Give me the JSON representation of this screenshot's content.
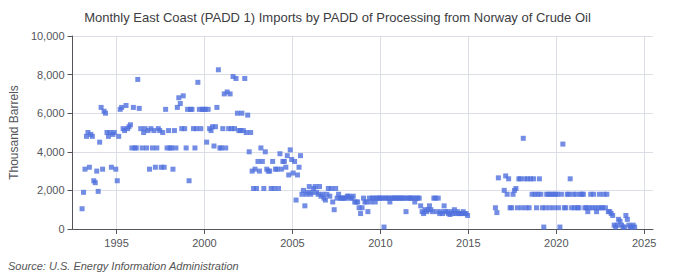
{
  "chart_data": {
    "type": "scatter",
    "title": "Monthly East Coast (PADD 1) Imports by PADD of Processing from Norway of Crude Oil",
    "ylabel": "Thousand Barrels",
    "annotations": [
      "Source: U.S. Energy Information Administration"
    ],
    "marker": "square",
    "grid": true,
    "xlim": [
      1992.5,
      2025.5
    ],
    "xticks": [
      1995,
      2000,
      2005,
      2010,
      2015,
      2020,
      2025
    ],
    "ylim": [
      0,
      10000
    ],
    "yticks": [
      0,
      {
        "value": 2000,
        "label": "2,000"
      },
      {
        "value": 4000,
        "label": "4,000"
      },
      {
        "value": 6000,
        "label": "6,000"
      },
      {
        "value": 8000,
        "label": "8,000"
      },
      {
        "value": 10000,
        "label": "10,000"
      }
    ],
    "x": [
      1993.0416666666667,
      1993.125,
      1993.2083333333333,
      1993.2916666666667,
      1993.375,
      1993.4583333333333,
      1993.5416666666667,
      1993.625,
      1993.7083333333333,
      1993.7916666666667,
      1993.875,
      1993.9583333333333,
      1994.0416666666667,
      1994.125,
      1994.2083333333333,
      1994.2916666666667,
      1994.375,
      1994.4583333333333,
      1994.5416666666667,
      1994.625,
      1994.7083333333333,
      1994.7916666666667,
      1994.875,
      1994.9583333333333,
      1995.0416666666667,
      1995.125,
      1995.2083333333333,
      1995.2916666666667,
      1995.375,
      1995.4583333333333,
      1995.5416666666667,
      1995.625,
      1995.7083333333333,
      1995.7916666666667,
      1995.875,
      1995.9583333333333,
      1996.0416666666667,
      1996.125,
      1996.2083333333333,
      1996.2916666666667,
      1996.375,
      1996.4583333333333,
      1996.5416666666667,
      1996.625,
      1996.7083333333333,
      1996.7916666666667,
      1996.875,
      1996.9583333333333,
      1997.0416666666667,
      1997.125,
      1997.2083333333333,
      1997.2916666666667,
      1997.375,
      1997.4583333333333,
      1997.5416666666667,
      1997.625,
      1997.7083333333333,
      1997.7916666666667,
      1997.875,
      1997.9583333333333,
      1998.0416666666667,
      1998.125,
      1998.2083333333333,
      1998.2916666666667,
      1998.375,
      1998.4583333333333,
      1998.5416666666667,
      1998.625,
      1998.7083333333333,
      1998.7916666666667,
      1998.875,
      1998.9583333333333,
      1999.0416666666667,
      1999.125,
      1999.2083333333333,
      1999.2916666666667,
      1999.375,
      1999.4583333333333,
      1999.5416666666667,
      1999.625,
      1999.7083333333333,
      1999.7916666666667,
      1999.875,
      1999.9583333333333,
      2000.0416666666667,
      2000.125,
      2000.2083333333333,
      2000.2916666666667,
      2000.375,
      2000.4583333333333,
      2000.5416666666667,
      2000.625,
      2000.7083333333333,
      2000.7916666666667,
      2000.875,
      2000.9583333333333,
      2001.0416666666667,
      2001.125,
      2001.2083333333333,
      2001.2916666666667,
      2001.375,
      2001.4583333333333,
      2001.5416666666667,
      2001.625,
      2001.7083333333333,
      2001.7916666666667,
      2001.875,
      2001.9583333333333,
      2002.0416666666667,
      2002.125,
      2002.2083333333333,
      2002.2916666666667,
      2002.375,
      2002.4583333333333,
      2002.5416666666667,
      2002.625,
      2002.7083333333333,
      2002.7916666666667,
      2002.875,
      2002.9583333333333,
      2003.0416666666667,
      2003.125,
      2003.2083333333333,
      2003.2916666666667,
      2003.375,
      2003.4583333333333,
      2003.5416666666667,
      2003.625,
      2003.7083333333333,
      2003.7916666666667,
      2003.875,
      2003.9583333333333,
      2004.0416666666667,
      2004.125,
      2004.2083333333333,
      2004.2916666666667,
      2004.375,
      2004.4583333333333,
      2004.5416666666667,
      2004.625,
      2004.7083333333333,
      2004.7916666666667,
      2004.875,
      2004.9583333333333,
      2005.0416666666667,
      2005.125,
      2005.2083333333333,
      2005.2916666666667,
      2005.375,
      2005.4583333333333,
      2005.5416666666667,
      2005.625,
      2005.7083333333333,
      2005.7916666666667,
      2005.875,
      2005.9583333333333,
      2006.0416666666667,
      2006.125,
      2006.2083333333333,
      2006.2916666666667,
      2006.375,
      2006.4583333333333,
      2006.5416666666667,
      2006.625,
      2006.7083333333333,
      2006.7916666666667,
      2006.875,
      2006.9583333333333,
      2007.0416666666667,
      2007.125,
      2007.2083333333333,
      2007.2916666666667,
      2007.375,
      2007.4583333333333,
      2007.5416666666667,
      2007.625,
      2007.7083333333333,
      2007.7916666666667,
      2007.875,
      2007.9583333333333,
      2008.0416666666667,
      2008.125,
      2008.2083333333333,
      2008.2916666666667,
      2008.375,
      2008.4583333333333,
      2008.5416666666667,
      2008.625,
      2008.7083333333333,
      2008.7916666666667,
      2008.875,
      2008.9583333333333,
      2009.0416666666667,
      2009.125,
      2009.2083333333333,
      2009.2916666666667,
      2009.375,
      2009.4583333333333,
      2009.5416666666667,
      2009.625,
      2009.7083333333333,
      2009.7916666666667,
      2009.875,
      2009.9583333333333,
      2010.0416666666667,
      2010.125,
      2010.2083333333333,
      2010.2916666666667,
      2010.375,
      2010.4583333333333,
      2010.5416666666667,
      2010.625,
      2010.7083333333333,
      2010.7916666666667,
      2010.875,
      2010.9583333333333,
      2011.0416666666667,
      2011.125,
      2011.2083333333333,
      2011.2916666666667,
      2011.375,
      2011.4583333333333,
      2011.5416666666667,
      2011.625,
      2011.7083333333333,
      2011.7916666666667,
      2011.875,
      2011.9583333333333,
      2012.0416666666667,
      2012.125,
      2012.2083333333333,
      2012.2916666666667,
      2012.375,
      2012.4583333333333,
      2012.5416666666667,
      2012.625,
      2012.7083333333333,
      2012.7916666666667,
      2012.875,
      2012.9583333333333,
      2013.0416666666667,
      2013.125,
      2013.2083333333333,
      2013.2916666666667,
      2013.375,
      2013.4583333333333,
      2013.5416666666667,
      2013.625,
      2013.7083333333333,
      2013.7916666666667,
      2013.875,
      2013.9583333333333,
      2014.0416666666667,
      2014.125,
      2014.2083333333333,
      2014.2916666666667,
      2014.375,
      2014.4583333333333,
      2014.5416666666667,
      2014.625,
      2014.7083333333333,
      2014.7916666666667,
      2014.875,
      2014.9583333333333,
      2016.5416666666667,
      2016.625,
      2016.7083333333333,
      2017.0416666666667,
      2017.125,
      2017.2083333333333,
      2017.2916666666667,
      2017.375,
      2017.4583333333333,
      2017.5416666666667,
      2017.625,
      2017.7083333333333,
      2017.7916666666667,
      2017.875,
      2017.9583333333333,
      2018.0416666666667,
      2018.125,
      2018.2083333333333,
      2018.2916666666667,
      2018.375,
      2018.4583333333333,
      2018.5416666666667,
      2018.625,
      2018.7083333333333,
      2018.7916666666667,
      2018.875,
      2018.9583333333333,
      2019.0416666666667,
      2019.125,
      2019.2083333333333,
      2019.2916666666667,
      2019.375,
      2019.4583333333333,
      2019.5416666666667,
      2019.625,
      2019.7083333333333,
      2019.7916666666667,
      2019.875,
      2019.9583333333333,
      2020.0416666666667,
      2020.125,
      2020.2083333333333,
      2020.2916666666667,
      2020.375,
      2020.4583333333333,
      2020.5416666666667,
      2020.625,
      2020.7083333333333,
      2020.7916666666667,
      2020.875,
      2020.9583333333333,
      2021.0416666666667,
      2021.125,
      2021.2083333333333,
      2021.2916666666667,
      2021.375,
      2021.4583333333333,
      2021.5416666666667,
      2021.625,
      2021.7083333333333,
      2021.7916666666667,
      2021.875,
      2021.9583333333333,
      2022.0416666666667,
      2022.125,
      2022.2083333333333,
      2022.2916666666667,
      2022.375,
      2022.4583333333333,
      2022.5416666666667,
      2022.625,
      2022.7083333333333,
      2022.7916666666667,
      2022.875,
      2022.9583333333333,
      2023.0416666666667,
      2023.125,
      2023.2083333333333,
      2023.2916666666667,
      2023.375,
      2023.4583333333333,
      2023.5416666666667,
      2023.625,
      2023.7083333333333,
      2023.7916666666667,
      2023.875,
      2023.9583333333333,
      2024.0416666666667,
      2024.125,
      2024.2083333333333,
      2024.2916666666667,
      2024.375,
      2024.4583333333333
    ],
    "values": [
      1050,
      1900,
      3100,
      4800,
      5000,
      3200,
      4900,
      4800,
      2500,
      2400,
      3000,
      1950,
      4500,
      6300,
      3100,
      6100,
      6000,
      5000,
      4800,
      5000,
      3200,
      4900,
      5000,
      3100,
      2500,
      4800,
      6200,
      6300,
      5200,
      5100,
      6400,
      5200,
      5300,
      5400,
      4200,
      6300,
      4200,
      4200,
      7750,
      6250,
      5200,
      4200,
      5000,
      5200,
      4200,
      5100,
      3100,
      5200,
      4200,
      5100,
      3200,
      4200,
      5200,
      5100,
      3200,
      5000,
      3200,
      6200,
      4200,
      5100,
      4200,
      4200,
      3100,
      5100,
      4200,
      6300,
      6800,
      6500,
      5200,
      6900,
      5200,
      4200,
      6200,
      2500,
      6200,
      6200,
      5200,
      4200,
      5200,
      7600,
      6200,
      5200,
      6200,
      6200,
      6200,
      4500,
      6200,
      5200,
      5100,
      5300,
      4300,
      5300,
      6300,
      8250,
      4200,
      4200,
      5200,
      7000,
      4200,
      7100,
      5200,
      7000,
      5200,
      7900,
      5200,
      7800,
      6000,
      5100,
      5100,
      6000,
      5100,
      7800,
      5000,
      5900,
      4000,
      5000,
      3000,
      2100,
      3100,
      2100,
      3500,
      3000,
      4200,
      3500,
      2100,
      4000,
      3100,
      3000,
      3000,
      2100,
      3500,
      2100,
      3100,
      3100,
      2100,
      3900,
      3100,
      3500,
      3500,
      3200,
      3800,
      2800,
      4100,
      3600,
      2900,
      3500,
      1500,
      2800,
      3200,
      3800,
      1800,
      2000,
      1200,
      1800,
      1900,
      2200,
      1800,
      1900,
      2100,
      2200,
      1900,
      1800,
      2200,
      1700,
      1800,
      1600,
      1500,
      1800,
      2100,
      1700,
      2100,
      1400,
      1000,
      2100,
      1600,
      1800,
      1600,
      1600,
      1600,
      1600,
      1600,
      1700,
      1700,
      1600,
      1600,
      1700,
      1400,
      1400,
      1400,
      1100,
      800,
      1100,
      1600,
      1400,
      1400,
      900,
      1600,
      1400,
      1600,
      1600,
      1400,
      1600,
      1600,
      1600,
      1600,
      1600,
      100,
      1600,
      1600,
      1600,
      1400,
      1600,
      1600,
      1600,
      1600,
      1600,
      1600,
      1600,
      1600,
      1600,
      1600,
      900,
      1600,
      1600,
      1600,
      1600,
      1600,
      1400,
      1600,
      1600,
      1600,
      1200,
      900,
      800,
      1000,
      900,
      1000,
      1200,
      1000,
      900,
      1600,
      1600,
      900,
      1600,
      800,
      900,
      800,
      1200,
      900,
      900,
      800,
      750,
      900,
      800,
      1000,
      800,
      900,
      800,
      800,
      800,
      900,
      800,
      800,
      700,
      1100,
      850,
      2650,
      2000,
      2750,
      1800,
      2600,
      1100,
      1100,
      1800,
      2000,
      2100,
      1100,
      2600,
      2600,
      1100,
      4700,
      2600,
      1100,
      2600,
      1100,
      2600,
      1800,
      2600,
      1800,
      1100,
      1800,
      2600,
      1800,
      1100,
      100,
      1100,
      1800,
      1800,
      1100,
      1800,
      1800,
      1100,
      1800,
      1800,
      1100,
      100,
      1800,
      4400,
      1100,
      1100,
      1800,
      1800,
      2600,
      1100,
      1800,
      1100,
      1800,
      1100,
      1100,
      1800,
      1800,
      1800,
      1100,
      1100,
      900,
      1100,
      1800,
      1100,
      1800,
      1100,
      900,
      1100,
      1800,
      1100,
      1100,
      1800,
      1100,
      1800,
      900,
      900,
      800,
      700,
      200,
      100,
      200,
      500,
      400,
      200,
      100,
      100,
      700,
      500,
      200,
      100,
      100,
      200,
      100
    ]
  }
}
